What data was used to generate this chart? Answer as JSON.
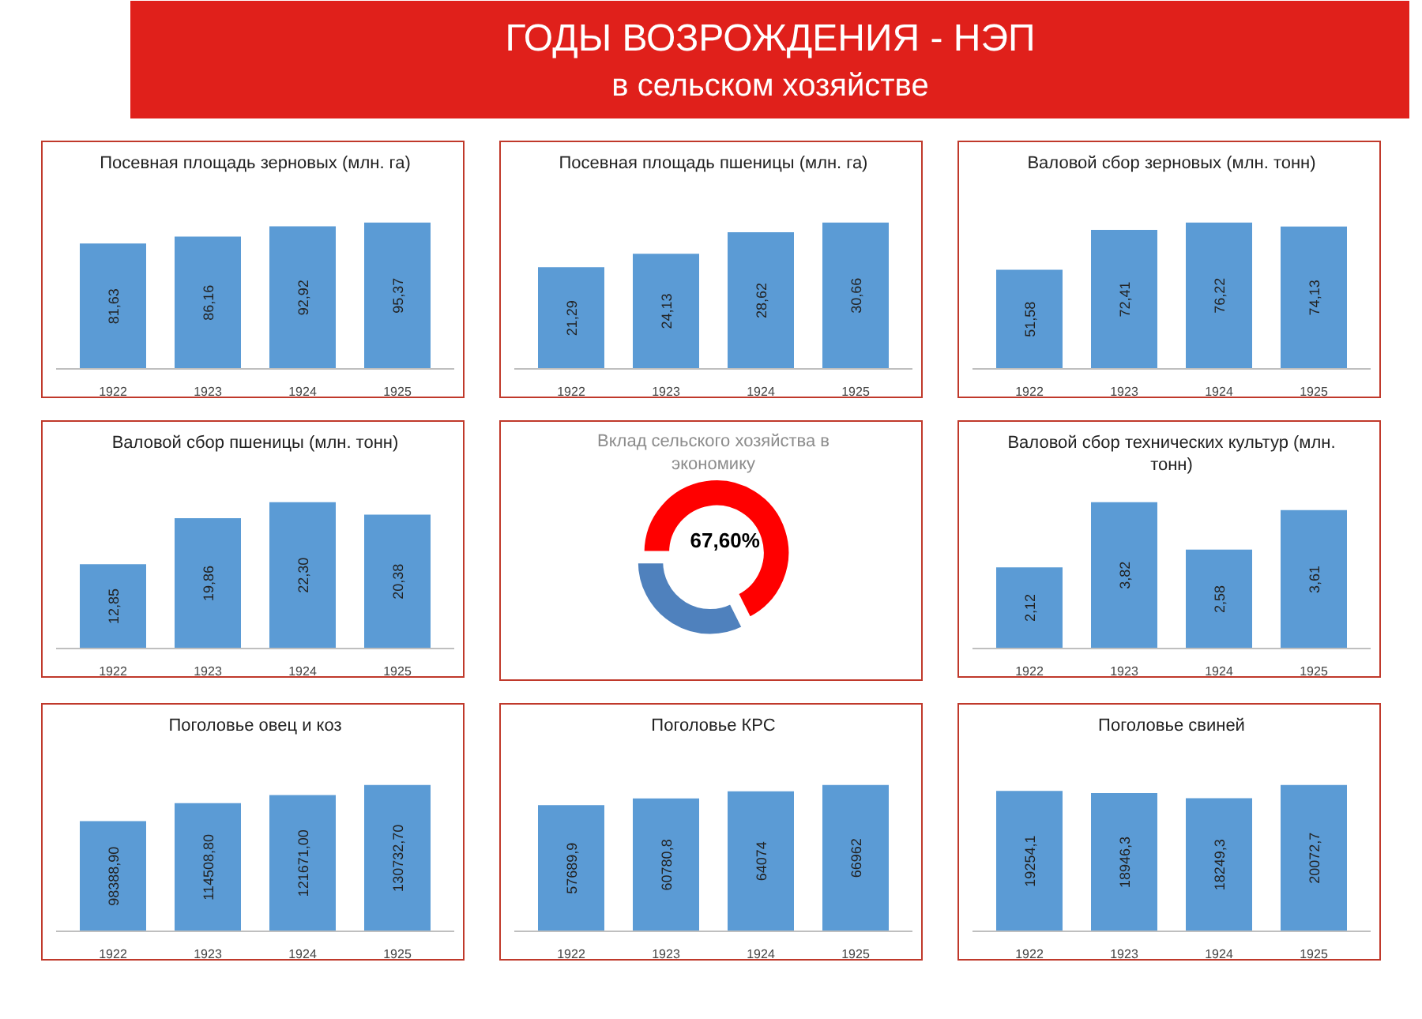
{
  "chart_data": [
    {
      "type": "other",
      "title": "ГОДЫ ВОЗРОЖДЕНИЯ - НЭП",
      "subtitle": "в сельском хозяйстве"
    },
    {
      "type": "bar",
      "title": "Посевная площадь зерновых (млн. га)",
      "categories": [
        "1922",
        "1923",
        "1924",
        "1925"
      ],
      "values": [
        81.63,
        86.16,
        92.92,
        95.37
      ],
      "value_labels": [
        "81,63",
        "86,16",
        "92,92",
        "95,37"
      ],
      "color": "#5b9bd5"
    },
    {
      "type": "bar",
      "title": "Посевная площадь пшеницы (млн. га)",
      "categories": [
        "1922",
        "1923",
        "1924",
        "1925"
      ],
      "values": [
        21.29,
        24.13,
        28.62,
        30.66
      ],
      "value_labels": [
        "21,29",
        "24,13",
        "28,62",
        "30,66"
      ],
      "color": "#5b9bd5"
    },
    {
      "type": "bar",
      "title": "Валовой сбор зерновых (млн. тонн)",
      "categories": [
        "1922",
        "1923",
        "1924",
        "1925"
      ],
      "values": [
        51.58,
        72.41,
        76.22,
        74.13
      ],
      "value_labels": [
        "51,58",
        "72,41",
        "76,22",
        "74,13"
      ],
      "color": "#5b9bd5"
    },
    {
      "type": "bar",
      "title": "Валовой сбор пшеницы (млн. тонн)",
      "categories": [
        "1922",
        "1923",
        "1924",
        "1925"
      ],
      "values": [
        12.85,
        19.86,
        22.3,
        20.38
      ],
      "value_labels": [
        "12,85",
        "19,86",
        "22,30",
        "20,38"
      ],
      "color": "#5b9bd5"
    },
    {
      "type": "donut",
      "title": "Вклад сельского хозяйства в экономику",
      "categories": [
        null,
        null
      ],
      "values": [
        67.6,
        32.4
      ],
      "value_labels": [
        "67,60%",
        null
      ],
      "colors": [
        "#ff0000",
        "#4f81bd"
      ]
    },
    {
      "type": "bar",
      "title": "Валовой сбор технических культур (млн. тонн)",
      "categories": [
        "1922",
        "1923",
        "1924",
        "1925"
      ],
      "values": [
        2.12,
        3.82,
        2.58,
        3.61
      ],
      "value_labels": [
        "2,12",
        "3,82",
        "2,58",
        "3,61"
      ],
      "color": "#5b9bd5"
    },
    {
      "type": "bar",
      "title": "Поголовье овец и коз",
      "categories": [
        "1922",
        "1923",
        "1924",
        "1925"
      ],
      "values": [
        98388.9,
        114508.8,
        121671.0,
        130732.7
      ],
      "value_labels": [
        "98388,90",
        "114508,80",
        "121671,00",
        "130732,70"
      ],
      "color": "#5b9bd5"
    },
    {
      "type": "bar",
      "title": "Поголовье КРС",
      "categories": [
        "1922",
        "1923",
        "1924",
        "1925"
      ],
      "values": [
        57689.9,
        60780.8,
        64074,
        66962
      ],
      "value_labels": [
        "57689,9",
        "60780,8",
        "64074",
        "66962"
      ],
      "color": "#5b9bd5"
    },
    {
      "type": "bar",
      "title": "Поголовье свиней",
      "categories": [
        "1922",
        "1923",
        "1924",
        "1925"
      ],
      "values": [
        19254.1,
        18946.3,
        18249.3,
        20072.7
      ],
      "value_labels": [
        "19254,1",
        "18946,3",
        "18249,3",
        "20072,7"
      ],
      "color": "#5b9bd5"
    }
  ]
}
